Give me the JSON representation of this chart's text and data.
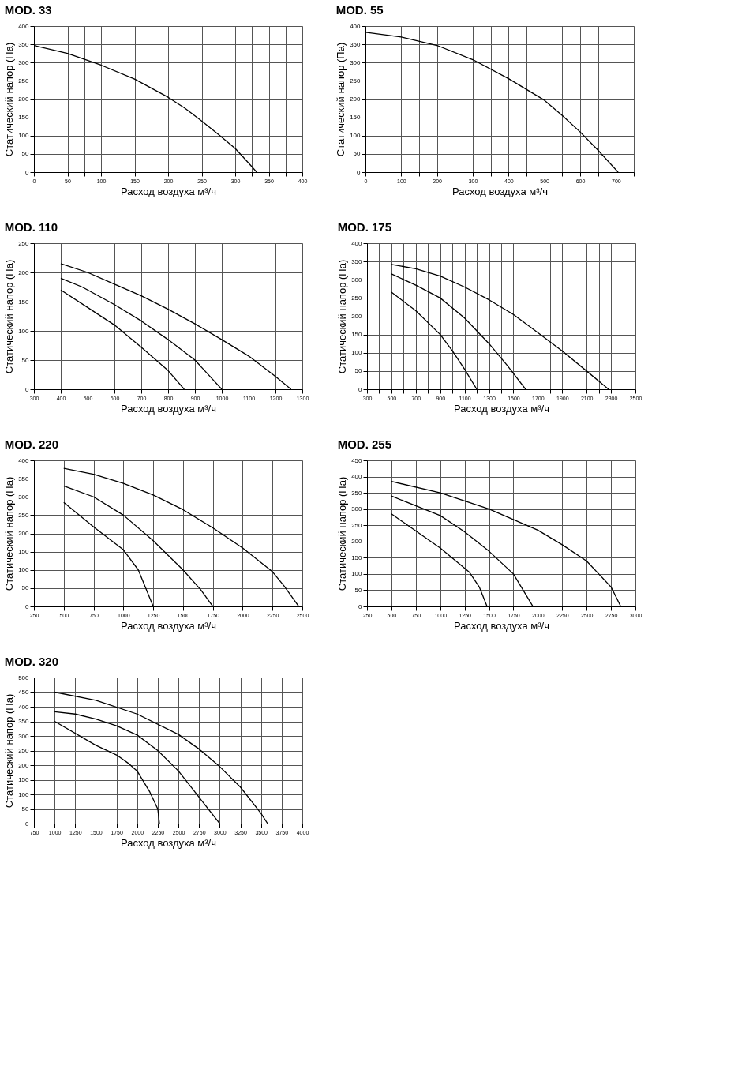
{
  "chart_data": [
    {
      "type": "line",
      "title": "MOD. 33",
      "xlabel": "Расход  воздуха  м³/ч",
      "ylabel": "Статический напор (Па)",
      "xlim": [
        0,
        400
      ],
      "ylim": [
        0,
        400
      ],
      "xticks": [
        0,
        {
          "value": 25,
          "label": null
        },
        50,
        {
          "value": 75,
          "label": null
        },
        100,
        {
          "value": 125,
          "label": null
        },
        150,
        {
          "value": 175,
          "label": null
        },
        200,
        {
          "value": 225,
          "label": null
        },
        250,
        {
          "value": 275,
          "label": null
        },
        300,
        {
          "value": 325,
          "label": null
        },
        350,
        {
          "value": 375,
          "label": null
        },
        400
      ],
      "yticks": [
        0,
        50,
        100,
        150,
        200,
        250,
        300,
        350,
        400
      ],
      "grid": true,
      "marker": "none",
      "line_style": "solid",
      "legend": false,
      "series": [
        {
          "color": "#000000",
          "x": [
            0,
            50,
            100,
            150,
            200,
            225,
            250,
            275,
            300,
            320,
            332
          ],
          "values": [
            347,
            325,
            293,
            255,
            205,
            175,
            140,
            103,
            65,
            25,
            0
          ]
        }
      ]
    },
    {
      "type": "line",
      "title": "MOD. 55",
      "xlabel": "Расход  воздуха  м³/ч",
      "ylabel": "Статический напор (Па)",
      "xlim": [
        0,
        750
      ],
      "ylim": [
        0,
        400
      ],
      "xticks": [
        0,
        {
          "value": 50,
          "label": null
        },
        100,
        {
          "value": 150,
          "label": null
        },
        200,
        {
          "value": 250,
          "label": null
        },
        300,
        {
          "value": 350,
          "label": null
        },
        400,
        {
          "value": 450,
          "label": null
        },
        500,
        {
          "value": 550,
          "label": null
        },
        600,
        {
          "value": 650,
          "label": null
        },
        700,
        {
          "value": 750,
          "label": null
        }
      ],
      "yticks": [
        0,
        50,
        100,
        150,
        200,
        250,
        300,
        350,
        400
      ],
      "grid": true,
      "marker": "none",
      "line_style": "solid",
      "legend": false,
      "series": [
        {
          "color": "#000000",
          "x": [
            0,
            100,
            200,
            300,
            400,
            500,
            550,
            600,
            650,
            706
          ],
          "values": [
            383,
            370,
            347,
            308,
            256,
            197,
            155,
            110,
            60,
            0
          ]
        }
      ]
    },
    {
      "type": "line",
      "title": "MOD. 110",
      "xlabel": "Расход  воздуха  м³/ч",
      "ylabel": "Статический напор (Па)",
      "xlim": [
        300,
        1300
      ],
      "ylim": [
        0,
        250
      ],
      "xticks": [
        300,
        400,
        500,
        600,
        700,
        800,
        900,
        1000,
        1100,
        1200,
        1300
      ],
      "yticks": [
        0,
        50,
        100,
        150,
        200,
        250
      ],
      "grid": true,
      "marker": "none",
      "line_style": "solid",
      "legend": false,
      "series": [
        {
          "color": "#000000",
          "x": [
            400,
            500,
            600,
            700,
            800,
            900,
            1000,
            1100,
            1200,
            1258
          ],
          "values": [
            215,
            200,
            180,
            160,
            137,
            112,
            85,
            57,
            22,
            0
          ]
        },
        {
          "color": "#000000",
          "x": [
            400,
            480,
            600,
            700,
            800,
            900,
            1000
          ],
          "values": [
            190,
            175,
            145,
            117,
            85,
            50,
            0
          ]
        },
        {
          "color": "#000000",
          "x": [
            400,
            500,
            600,
            700,
            800,
            860
          ],
          "values": [
            170,
            140,
            110,
            72,
            32,
            0
          ]
        }
      ]
    },
    {
      "type": "line",
      "title": "MOD. 175",
      "xlabel": "Расход  воздуха  м³/ч",
      "ylabel": "Статический напор (Па)",
      "xlim": [
        300,
        2500
      ],
      "ylim": [
        0,
        400
      ],
      "xticks": [
        300,
        {
          "value": 400,
          "label": null
        },
        500,
        {
          "value": 600,
          "label": null
        },
        700,
        {
          "value": 800,
          "label": null
        },
        900,
        {
          "value": 1000,
          "label": null
        },
        1100,
        {
          "value": 1200,
          "label": null
        },
        1300,
        {
          "value": 1400,
          "label": null
        },
        1500,
        {
          "value": 1600,
          "label": null
        },
        1700,
        {
          "value": 1800,
          "label": null
        },
        1900,
        {
          "value": 2000,
          "label": null
        },
        2100,
        {
          "value": 2200,
          "label": null
        },
        2300,
        {
          "value": 2400,
          "label": null
        },
        2500
      ],
      "yticks": [
        0,
        50,
        100,
        150,
        200,
        250,
        300,
        350,
        400
      ],
      "grid": true,
      "marker": "none",
      "line_style": "solid",
      "legend": false,
      "series": [
        {
          "color": "#000000",
          "x": [
            500,
            700,
            900,
            1100,
            1300,
            1500,
            1700,
            1900,
            2100,
            2280
          ],
          "values": [
            342,
            330,
            310,
            280,
            245,
            205,
            155,
            105,
            50,
            0
          ]
        },
        {
          "color": "#000000",
          "x": [
            500,
            700,
            900,
            1100,
            1300,
            1450,
            1600
          ],
          "values": [
            316,
            285,
            250,
            195,
            125,
            65,
            0
          ]
        },
        {
          "color": "#000000",
          "x": [
            500,
            700,
            900,
            1000,
            1100,
            1200
          ],
          "values": [
            266,
            215,
            150,
            105,
            55,
            0
          ]
        }
      ]
    },
    {
      "type": "line",
      "title": "MOD. 220",
      "xlabel": "Расход  воздуха  м³/ч",
      "ylabel": "Статический напор (Па)",
      "xlim": [
        250,
        2500
      ],
      "ylim": [
        0,
        400
      ],
      "xticks": [
        250,
        500,
        750,
        1000,
        1250,
        1500,
        1750,
        2000,
        2250,
        2500
      ],
      "yticks": [
        0,
        50,
        100,
        150,
        200,
        250,
        300,
        350,
        400
      ],
      "grid": true,
      "marker": "none",
      "line_style": "solid",
      "legend": false,
      "series": [
        {
          "color": "#000000",
          "x": [
            500,
            750,
            1000,
            1250,
            1500,
            1750,
            2000,
            2250,
            2350,
            2470
          ],
          "values": [
            378,
            362,
            337,
            305,
            265,
            215,
            160,
            95,
            55,
            0
          ]
        },
        {
          "color": "#000000",
          "x": [
            500,
            750,
            1000,
            1250,
            1500,
            1650,
            1750
          ],
          "values": [
            330,
            300,
            250,
            180,
            100,
            45,
            0
          ]
        },
        {
          "color": "#000000",
          "x": [
            500,
            750,
            1000,
            1125,
            1200,
            1250
          ],
          "values": [
            285,
            218,
            155,
            100,
            40,
            0
          ]
        }
      ]
    },
    {
      "type": "line",
      "title": "MOD. 255",
      "xlabel": "Расход  воздуха  м³/ч",
      "ylabel": "Статический напор (Па)",
      "xlim": [
        250,
        3000
      ],
      "ylim": [
        0,
        450
      ],
      "xticks": [
        250,
        500,
        750,
        1000,
        1250,
        1500,
        1750,
        2000,
        2250,
        2500,
        2750,
        3000
      ],
      "yticks": [
        0,
        50,
        100,
        150,
        200,
        250,
        300,
        350,
        400,
        450
      ],
      "grid": true,
      "marker": "none",
      "line_style": "solid",
      "legend": false,
      "series": [
        {
          "color": "#000000",
          "x": [
            500,
            1000,
            1500,
            2000,
            2250,
            2500,
            2750,
            2850
          ],
          "values": [
            385,
            350,
            300,
            235,
            190,
            140,
            60,
            0
          ]
        },
        {
          "color": "#000000",
          "x": [
            500,
            1000,
            1250,
            1500,
            1750,
            1950
          ],
          "values": [
            340,
            280,
            230,
            170,
            100,
            0
          ]
        },
        {
          "color": "#000000",
          "x": [
            500,
            1000,
            1300,
            1400,
            1480
          ],
          "values": [
            285,
            180,
            105,
            60,
            0
          ]
        }
      ]
    },
    {
      "type": "line",
      "title": "MOD. 320",
      "xlabel": "Расход  воздуха  м³/ч",
      "ylabel": "Статический напор (Па)",
      "xlim": [
        750,
        4000
      ],
      "ylim": [
        0,
        500
      ],
      "xticks": [
        750,
        1000,
        1250,
        1500,
        1750,
        2000,
        2250,
        2500,
        2750,
        3000,
        3250,
        3500,
        3750,
        4000
      ],
      "yticks": [
        0,
        50,
        100,
        150,
        200,
        250,
        300,
        350,
        400,
        450,
        500
      ],
      "grid": true,
      "marker": "none",
      "line_style": "solid",
      "legend": false,
      "series": [
        {
          "color": "#000000",
          "x": [
            1000,
            1500,
            2000,
            2500,
            2750,
            3000,
            3250,
            3500,
            3580
          ],
          "values": [
            450,
            422,
            375,
            305,
            255,
            195,
            125,
            35,
            0
          ]
        },
        {
          "color": "#000000",
          "x": [
            1000,
            1250,
            1500,
            1750,
            2000,
            2250,
            2500,
            2750,
            3000
          ],
          "values": [
            383,
            375,
            358,
            335,
            303,
            250,
            180,
            90,
            0
          ]
        },
        {
          "color": "#000000",
          "x": [
            1000,
            1500,
            1750,
            1900,
            2000,
            2150,
            2250,
            2270
          ],
          "values": [
            350,
            268,
            235,
            205,
            180,
            110,
            50,
            0
          ]
        }
      ]
    }
  ]
}
